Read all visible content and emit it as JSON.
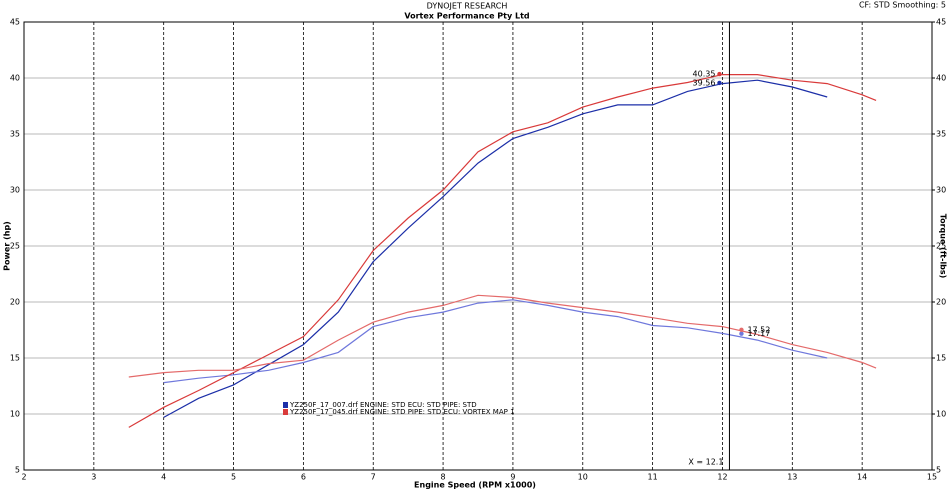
{
  "chart_data": {
    "type": "line",
    "title": "DYNOJET RESEARCH",
    "subtitle": "Vortex Performance Pty Ltd",
    "header_right": "CF: STD  Smoothing: 5",
    "x_label": "Engine Speed (RPM x1000)",
    "y_label": "Power (hp)",
    "y2_label": "Torque (ft-lbs)",
    "x": [
      3.5,
      4,
      4.5,
      5,
      5.5,
      6,
      6.5,
      7,
      7.5,
      8,
      8.5,
      9,
      9.5,
      10,
      10.5,
      11,
      11.5,
      12,
      12.5,
      13,
      13.5,
      14,
      14.2
    ],
    "series": [
      {
        "name": "YZ250F_17_007.drf ENGINE: STD ECU: STD PIPE: STD",
        "color": "#1c2fa8",
        "torque_color": "#6f78dc",
        "values": [
          null,
          9.7,
          11.4,
          12.6,
          14.4,
          16.2,
          19.1,
          23.6,
          26.6,
          29.4,
          32.4,
          34.6,
          35.6,
          36.8,
          37.6,
          37.6,
          38.8,
          39.5,
          39.8,
          39.2,
          38.3,
          null,
          null
        ],
        "torque": [
          null,
          12.8,
          13.2,
          13.5,
          13.9,
          14.6,
          15.5,
          17.8,
          18.6,
          19.1,
          19.9,
          20.2,
          19.7,
          19.1,
          18.7,
          17.9,
          17.7,
          17.2,
          16.6,
          15.7,
          15.0,
          null,
          null
        ],
        "power_readout": 39.56,
        "torque_readout": 17.17
      },
      {
        "name": "YZ250F_17_045.drf ENGINE: STD PIPE: STD ECU: VORTEX MAP 1",
        "color": "#d93a3a",
        "torque_color": "#e46a6a",
        "values": [
          8.8,
          10.6,
          12.1,
          13.7,
          15.3,
          16.9,
          20.2,
          24.6,
          27.5,
          30.0,
          33.4,
          35.2,
          36.0,
          37.4,
          38.3,
          39.1,
          39.6,
          40.3,
          40.3,
          39.8,
          39.5,
          38.5,
          38.0
        ],
        "torque": [
          13.3,
          13.7,
          13.9,
          13.9,
          14.5,
          14.8,
          16.6,
          18.2,
          19.1,
          19.7,
          20.6,
          20.4,
          19.9,
          19.5,
          19.1,
          18.6,
          18.1,
          17.8,
          17.1,
          16.2,
          15.5,
          14.6,
          14.1
        ],
        "power_readout": 40.35,
        "torque_readout": 17.52
      }
    ],
    "cursor": {
      "value": 12.1,
      "label": "X = 12.1"
    },
    "xlim": [
      2,
      15
    ],
    "xticks": [
      2,
      3,
      4,
      5,
      6,
      7,
      8,
      9,
      10,
      11,
      12,
      13,
      14,
      15
    ],
    "ylim": [
      5,
      45
    ],
    "yticks": [
      5,
      10,
      15,
      20,
      25,
      30,
      35,
      40,
      45
    ],
    "y2lim": [
      5,
      45
    ],
    "y2ticks": [
      5,
      10,
      15,
      20,
      25,
      30,
      35,
      40,
      45
    ],
    "grid": true
  }
}
